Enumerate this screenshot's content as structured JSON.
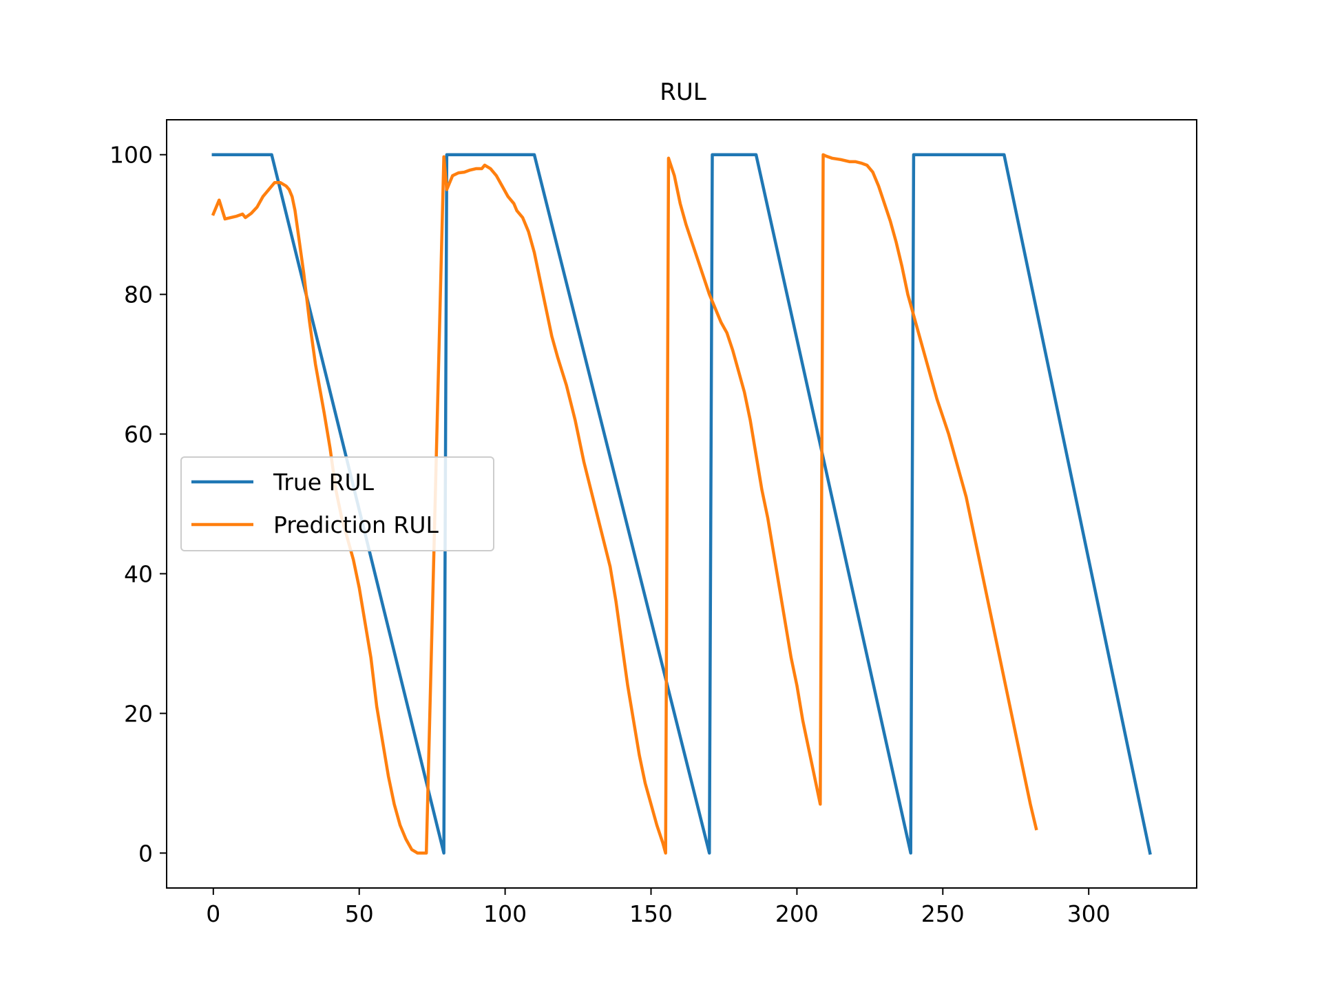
{
  "chart_data": {
    "type": "line",
    "title": "RUL",
    "xlabel": "",
    "ylabel": "",
    "xlim": [
      -16,
      337
    ],
    "ylim": [
      -5,
      105
    ],
    "xticks": [
      0,
      50,
      100,
      150,
      200,
      250,
      300
    ],
    "yticks": [
      0,
      20,
      40,
      60,
      80,
      100
    ],
    "grid": false,
    "legend_position": "center-left",
    "series": [
      {
        "name": "True RUL",
        "color": "#1f77b4",
        "points": [
          [
            0,
            100
          ],
          [
            20,
            100
          ],
          [
            79,
            0
          ],
          [
            80,
            100
          ],
          [
            110,
            100
          ],
          [
            170,
            0
          ],
          [
            171,
            100
          ],
          [
            186,
            100
          ],
          [
            239,
            0
          ],
          [
            240,
            100
          ],
          [
            271,
            100
          ],
          [
            321,
            0
          ]
        ]
      },
      {
        "name": "Prediction RUL",
        "color": "#ff7f0e",
        "points": [
          [
            0,
            91.5
          ],
          [
            2,
            93.5
          ],
          [
            4,
            90.8
          ],
          [
            6,
            91
          ],
          [
            8,
            91.2
          ],
          [
            10,
            91.5
          ],
          [
            11,
            91
          ],
          [
            13,
            91.6
          ],
          [
            15,
            92.5
          ],
          [
            17,
            94
          ],
          [
            19,
            95
          ],
          [
            21,
            96
          ],
          [
            23,
            96
          ],
          [
            25,
            95.5
          ],
          [
            26,
            95
          ],
          [
            27,
            94
          ],
          [
            28,
            92
          ],
          [
            29,
            89
          ],
          [
            30,
            86
          ],
          [
            31,
            83
          ],
          [
            33,
            76
          ],
          [
            35,
            70
          ],
          [
            38,
            63
          ],
          [
            40,
            58
          ],
          [
            42,
            52
          ],
          [
            44,
            48
          ],
          [
            46,
            45
          ],
          [
            48,
            42
          ],
          [
            50,
            38
          ],
          [
            52,
            33
          ],
          [
            54,
            28
          ],
          [
            56,
            21
          ],
          [
            58,
            16
          ],
          [
            60,
            11
          ],
          [
            62,
            7
          ],
          [
            64,
            4
          ],
          [
            66,
            2
          ],
          [
            68,
            0.5
          ],
          [
            70,
            0
          ],
          [
            73,
            0
          ],
          [
            79,
            99.7
          ],
          [
            80,
            95
          ],
          [
            81,
            96
          ],
          [
            82,
            97
          ],
          [
            84,
            97.4
          ],
          [
            86,
            97.5
          ],
          [
            88,
            97.8
          ],
          [
            90,
            98
          ],
          [
            92,
            98
          ],
          [
            93,
            98.5
          ],
          [
            95,
            98
          ],
          [
            97,
            97
          ],
          [
            99,
            95.5
          ],
          [
            101,
            94
          ],
          [
            103,
            93
          ],
          [
            104,
            92
          ],
          [
            106,
            91
          ],
          [
            108,
            89
          ],
          [
            110,
            86
          ],
          [
            112,
            82
          ],
          [
            114,
            78
          ],
          [
            116,
            74
          ],
          [
            118,
            71
          ],
          [
            121,
            67
          ],
          [
            124,
            62
          ],
          [
            127,
            56
          ],
          [
            130,
            51
          ],
          [
            133,
            46
          ],
          [
            136,
            41
          ],
          [
            138,
            36
          ],
          [
            140,
            30
          ],
          [
            142,
            24
          ],
          [
            144,
            19
          ],
          [
            146,
            14
          ],
          [
            148,
            10
          ],
          [
            150,
            7
          ],
          [
            152,
            4
          ],
          [
            154,
            1.5
          ],
          [
            155,
            0
          ],
          [
            156,
            99.5
          ],
          [
            158,
            97
          ],
          [
            160,
            93
          ],
          [
            162,
            90
          ],
          [
            164,
            87.5
          ],
          [
            166,
            85
          ],
          [
            168,
            82.5
          ],
          [
            170,
            80
          ],
          [
            172,
            78
          ],
          [
            174,
            76
          ],
          [
            176,
            74.5
          ],
          [
            178,
            72
          ],
          [
            180,
            69
          ],
          [
            182,
            66
          ],
          [
            184,
            62
          ],
          [
            186,
            57
          ],
          [
            188,
            52
          ],
          [
            190,
            48
          ],
          [
            192,
            43
          ],
          [
            194,
            38
          ],
          [
            196,
            33
          ],
          [
            198,
            28
          ],
          [
            200,
            24
          ],
          [
            202,
            19
          ],
          [
            204,
            15
          ],
          [
            206,
            11
          ],
          [
            208,
            7
          ],
          [
            209,
            100
          ],
          [
            210,
            99.8
          ],
          [
            212,
            99.5
          ],
          [
            215,
            99.3
          ],
          [
            218,
            99
          ],
          [
            220,
            99
          ],
          [
            222,
            98.8
          ],
          [
            224,
            98.5
          ],
          [
            226,
            97.5
          ],
          [
            228,
            95.5
          ],
          [
            230,
            93
          ],
          [
            232,
            90.5
          ],
          [
            234,
            87.5
          ],
          [
            236,
            84
          ],
          [
            238,
            80
          ],
          [
            240,
            77
          ],
          [
            242,
            74
          ],
          [
            244,
            71
          ],
          [
            246,
            68
          ],
          [
            248,
            65
          ],
          [
            250,
            62.5
          ],
          [
            252,
            60
          ],
          [
            254,
            57
          ],
          [
            256,
            54
          ],
          [
            258,
            51
          ],
          [
            260,
            47
          ],
          [
            262,
            43
          ],
          [
            264,
            39
          ],
          [
            266,
            35
          ],
          [
            268,
            31
          ],
          [
            270,
            27
          ],
          [
            272,
            23
          ],
          [
            274,
            19
          ],
          [
            276,
            15
          ],
          [
            278,
            11
          ],
          [
            280,
            7
          ],
          [
            282,
            3.5
          ]
        ]
      }
    ]
  }
}
